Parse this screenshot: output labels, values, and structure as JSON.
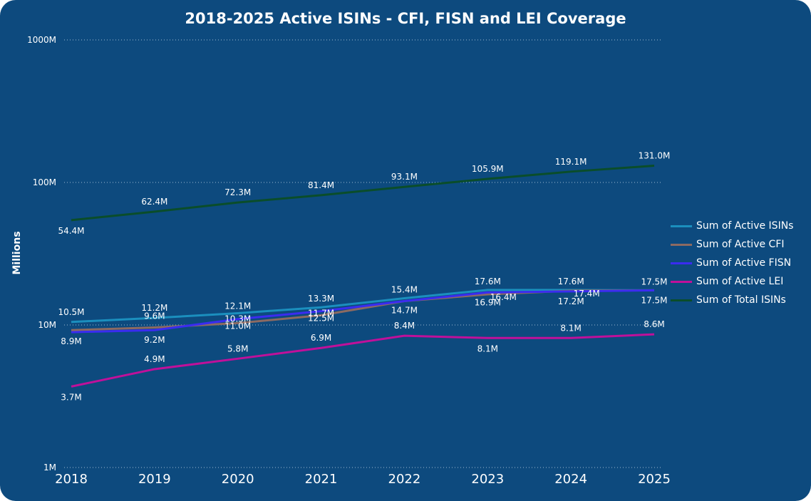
{
  "chart_data": {
    "type": "line",
    "title": "2018-2025 Active ISINs - CFI, FISN and LEI Coverage",
    "xlabel": "",
    "ylabel": "Millions",
    "yscale": "log",
    "ylim": [
      1,
      1000
    ],
    "yticks": [
      {
        "value": 1,
        "label": "1M"
      },
      {
        "value": 10,
        "label": "10M"
      },
      {
        "value": 100,
        "label": "100M"
      },
      {
        "value": 1000,
        "label": "1000M"
      }
    ],
    "grid": true,
    "legend_position": "right",
    "categories": [
      "2018",
      "2019",
      "2020",
      "2021",
      "2022",
      "2023",
      "2024",
      "2025"
    ],
    "series": [
      {
        "name": "Sum of Active ISINs",
        "color": "#1b8fbe",
        "values": [
          10.5,
          11.2,
          12.1,
          13.3,
          15.4,
          17.6,
          17.6,
          17.5
        ],
        "labels": [
          "10.5M",
          "11.2M",
          "12.1M",
          "13.3M",
          "15.4M",
          "17.6M",
          "17.6M",
          "17.5M"
        ]
      },
      {
        "name": "Sum of Active CFI",
        "color": "#8c6a62",
        "values": [
          9.2,
          9.6,
          10.3,
          11.7,
          14.7,
          16.4,
          17.4,
          17.5
        ],
        "labels": [
          "",
          "9.6M",
          "10.3M",
          "11.7M",
          "",
          "16.4M",
          "17.4M",
          ""
        ]
      },
      {
        "name": "Sum of Active FISN",
        "color": "#3a2cf0",
        "values": [
          8.9,
          9.2,
          11.0,
          12.5,
          14.7,
          16.9,
          17.2,
          17.5
        ],
        "labels": [
          "8.9M",
          "9.2M",
          "11.0M",
          "12.5M",
          "14.7M",
          "16.9M",
          "17.2M",
          "17.5M"
        ]
      },
      {
        "name": "Sum of Active LEI",
        "color": "#c0109a",
        "values": [
          3.7,
          4.9,
          5.8,
          6.9,
          8.4,
          8.1,
          8.1,
          8.6
        ],
        "labels": [
          "3.7M",
          "4.9M",
          "5.8M",
          "6.9M",
          "8.4M",
          "8.1M",
          "8.1M",
          "8.6M"
        ]
      },
      {
        "name": "Sum of Total ISINs",
        "color": "#0a4d2a",
        "values": [
          54.4,
          62.4,
          72.3,
          81.4,
          93.1,
          105.9,
          119.1,
          131.0
        ],
        "labels": [
          "54.4M",
          "62.4M",
          "72.3M",
          "81.4M",
          "93.1M",
          "105.9M",
          "119.1M",
          "131.0M"
        ]
      }
    ]
  }
}
